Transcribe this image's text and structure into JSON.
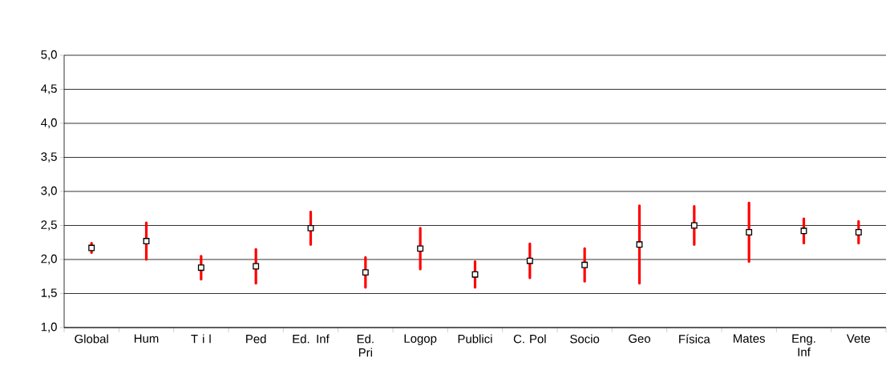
{
  "chart_data": {
    "type": "scatter",
    "categories": [
      "Global",
      "Hum",
      "T i l",
      "Ped",
      "Ed. Inf",
      "Ed. Pri",
      "Logop",
      "Publici",
      "C. Pol",
      "Socio",
      "Geo",
      "Física",
      "Mates",
      "Eng. Inf",
      "Vete"
    ],
    "series": [
      {
        "color": "#000000",
        "values": [
          2.17,
          2.27,
          1.88,
          1.9,
          2.46,
          1.81,
          2.16,
          1.78,
          1.98,
          1.92,
          2.22,
          2.5,
          2.4,
          2.42,
          2.4
        ],
        "errors": [
          0.07,
          0.27,
          0.17,
          0.25,
          0.24,
          0.22,
          0.3,
          0.19,
          0.25,
          0.24,
          0.57,
          0.28,
          0.43,
          0.18,
          0.16
        ]
      }
    ],
    "ylim": [
      1,
      5
    ],
    "yticks": [
      {
        "value": 1,
        "label": "1,0"
      },
      {
        "value": 1.5,
        "label": "1,5"
      },
      {
        "value": 2,
        "label": "2,0"
      },
      {
        "value": 2.5,
        "label": "2,5"
      },
      {
        "value": 3,
        "label": "3,0"
      },
      {
        "value": 3.5,
        "label": "3,5"
      },
      {
        "value": 4,
        "label": "4,0"
      },
      {
        "value": 4.5,
        "label": "4,5"
      },
      {
        "value": 5,
        "label": "5,0"
      }
    ],
    "grid": "y",
    "marker": "square",
    "legend": false
  }
}
